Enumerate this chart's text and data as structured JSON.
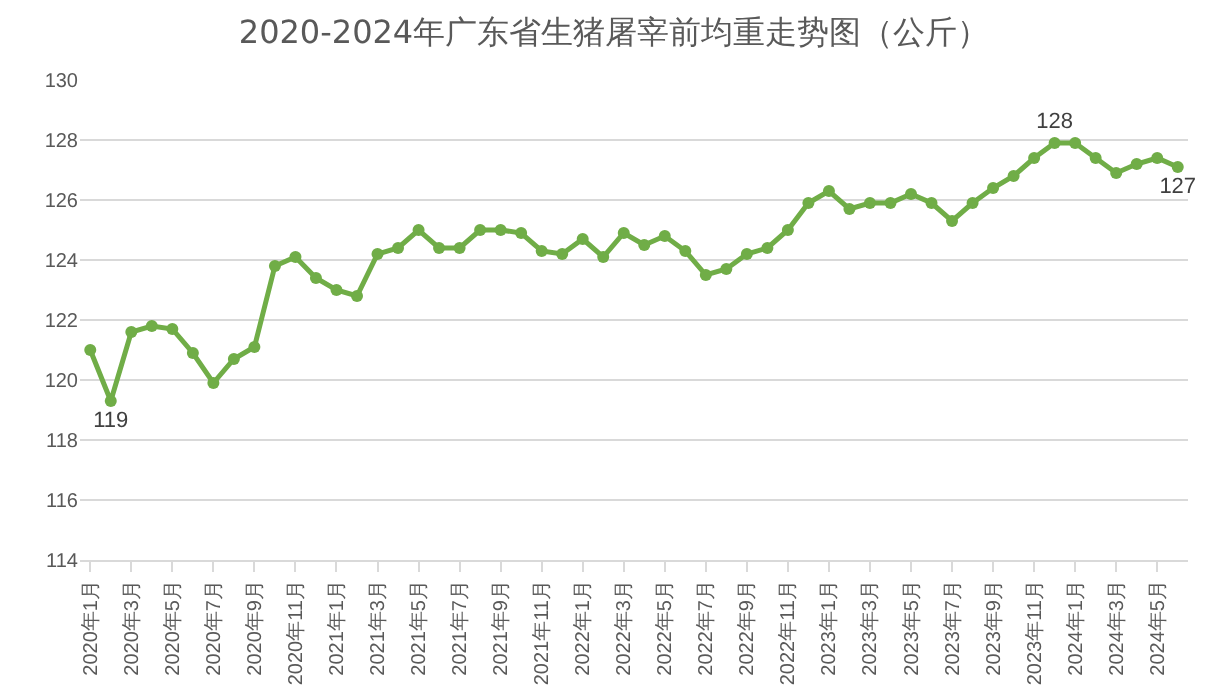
{
  "chart_data": {
    "type": "line",
    "title": "2020-2024年广东省生猪屠宰前均重走势图（公斤）",
    "categories": [
      "2020年1月",
      null,
      "2020年3月",
      null,
      "2020年5月",
      null,
      "2020年7月",
      null,
      "2020年9月",
      null,
      "2020年11月",
      null,
      "2021年1月",
      null,
      "2021年3月",
      null,
      "2021年5月",
      null,
      "2021年7月",
      null,
      "2021年9月",
      null,
      "2021年11月",
      null,
      "2022年1月",
      null,
      "2022年3月",
      null,
      "2022年5月",
      null,
      "2022年7月",
      null,
      "2022年9月",
      null,
      "2022年11月",
      null,
      "2023年1月",
      null,
      "2023年3月",
      null,
      "2023年5月",
      null,
      "2023年7月",
      null,
      "2023年9月",
      null,
      "2023年11月",
      null,
      "2024年1月",
      null,
      "2024年3月",
      null,
      "2024年5月",
      null
    ],
    "series": [
      {
        "color": "#70ad47",
        "values": [
          121.0,
          119.3,
          121.6,
          121.8,
          121.7,
          120.9,
          119.9,
          120.7,
          121.1,
          123.8,
          124.1,
          123.4,
          123.0,
          122.8,
          124.2,
          124.4,
          125.0,
          124.4,
          124.4,
          125.0,
          125.0,
          124.9,
          124.3,
          124.2,
          124.7,
          124.1,
          124.9,
          124.5,
          124.8,
          124.3,
          123.5,
          123.7,
          124.2,
          124.4,
          125.0,
          125.9,
          126.3,
          125.7,
          125.9,
          125.9,
          126.2,
          125.9,
          125.3,
          125.9,
          126.4,
          126.8,
          127.4,
          127.9,
          127.9,
          127.4,
          126.9,
          127.2,
          127.4,
          127.1
        ],
        "value_labels": [
          null,
          "119",
          null,
          null,
          null,
          null,
          null,
          null,
          null,
          null,
          null,
          null,
          null,
          null,
          null,
          null,
          null,
          null,
          null,
          null,
          null,
          null,
          null,
          null,
          null,
          null,
          null,
          null,
          null,
          null,
          null,
          null,
          null,
          null,
          null,
          null,
          null,
          null,
          null,
          null,
          null,
          null,
          null,
          null,
          null,
          null,
          null,
          "128",
          null,
          null,
          null,
          null,
          null,
          "127"
        ]
      }
    ],
    "ylim": [
      114,
      130
    ],
    "yticks": [
      114,
      116,
      118,
      120,
      122,
      124,
      126,
      128,
      130
    ],
    "grid": "y",
    "legend": false,
    "marker": "circle",
    "line_style": "solid"
  }
}
